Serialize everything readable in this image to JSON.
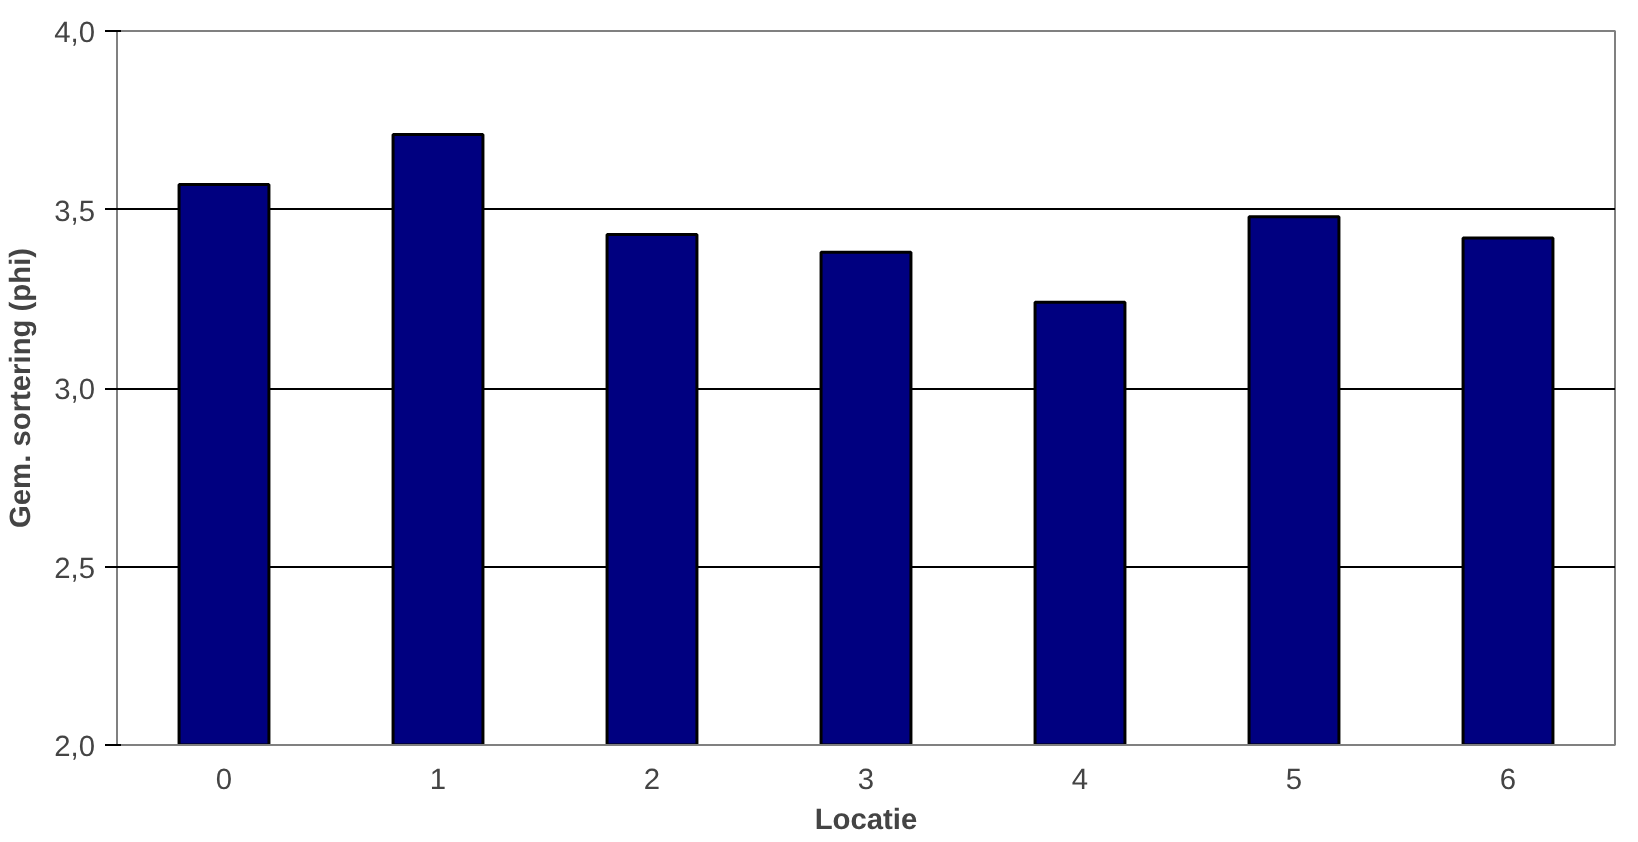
{
  "chart_data": {
    "type": "bar",
    "xlabel": "Locatie",
    "ylabel": "Gem. sortering (phi)",
    "categories": [
      "0",
      "1",
      "2",
      "3",
      "4",
      "5",
      "6"
    ],
    "values": [
      3.57,
      3.71,
      3.43,
      3.38,
      3.24,
      3.48,
      3.42
    ],
    "color": "#000080",
    "ylim": [
      2.0,
      4.0
    ],
    "yticks": [
      {
        "value": 2.0,
        "label": "2,0"
      },
      {
        "value": 2.5,
        "label": "2,5"
      },
      {
        "value": 3.0,
        "label": "3,0"
      },
      {
        "value": 3.5,
        "label": "3,5"
      },
      {
        "value": 4.0,
        "label": "4,0"
      }
    ],
    "grid": "y"
  }
}
